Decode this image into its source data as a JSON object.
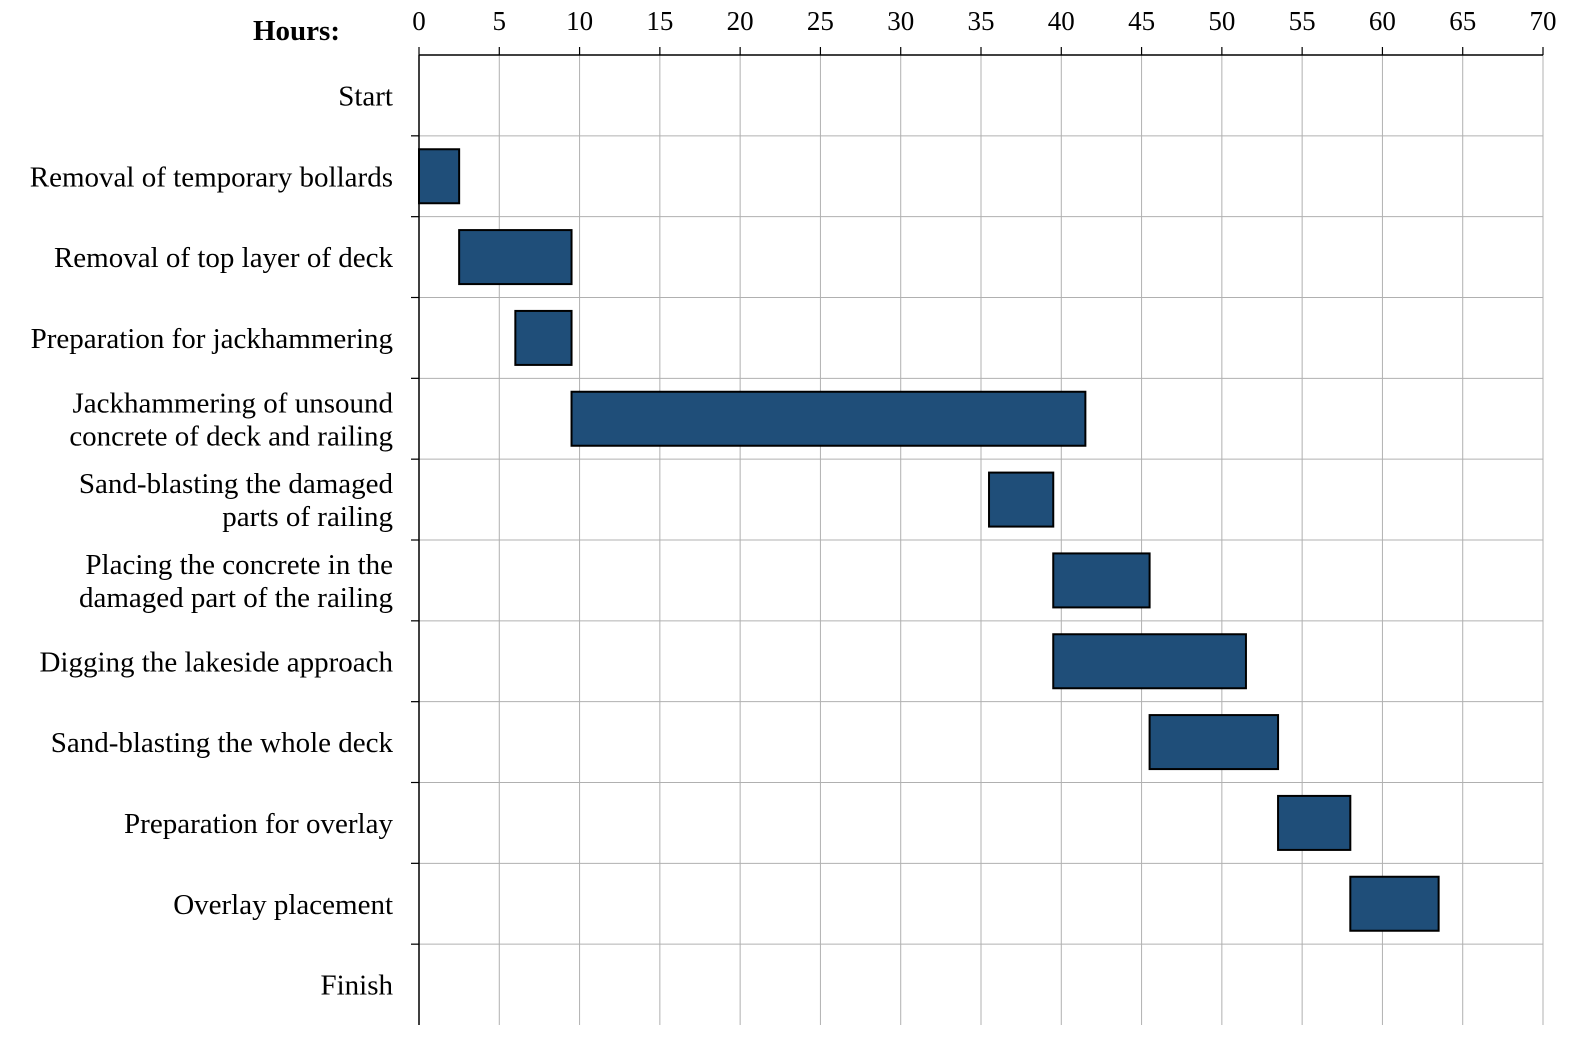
{
  "chart_data": {
    "type": "gantt",
    "xlabel": "Hours:",
    "xlim": [
      0,
      70
    ],
    "xticks": [
      "0",
      "5",
      "10",
      "15",
      "20",
      "25",
      "30",
      "35",
      "40",
      "45",
      "50",
      "55",
      "60",
      "65",
      "70"
    ],
    "grid": true,
    "colors": {
      "bar": "#1f4e79",
      "bar_edge": "#000000",
      "grid": "#b0b0b0"
    },
    "tasks": [
      {
        "name": [
          "Start"
        ],
        "start": null,
        "end": null
      },
      {
        "name": [
          "Removal of temporary bollards"
        ],
        "start": 0,
        "end": 2.5
      },
      {
        "name": [
          "Removal of top layer of deck"
        ],
        "start": 2.5,
        "end": 9.5
      },
      {
        "name": [
          "Preparation for jackhammering"
        ],
        "start": 6,
        "end": 9.5
      },
      {
        "name": [
          "Jackhammering of unsound",
          "concrete of deck and railing"
        ],
        "start": 9.5,
        "end": 41.5
      },
      {
        "name": [
          "Sand-blasting the damaged",
          "parts of railing"
        ],
        "start": 35.5,
        "end": 39.5
      },
      {
        "name": [
          "Placing the concrete in the",
          "damaged part of the railing"
        ],
        "start": 39.5,
        "end": 45.5
      },
      {
        "name": [
          "Digging the lakeside approach"
        ],
        "start": 39.5,
        "end": 51.5
      },
      {
        "name": [
          "Sand-blasting the whole deck"
        ],
        "start": 45.5,
        "end": 53.5
      },
      {
        "name": [
          "Preparation for overlay"
        ],
        "start": 53.5,
        "end": 58
      },
      {
        "name": [
          "Overlay placement"
        ],
        "start": 58,
        "end": 63.5
      },
      {
        "name": [
          "Finish"
        ],
        "start": null,
        "end": null
      }
    ]
  }
}
